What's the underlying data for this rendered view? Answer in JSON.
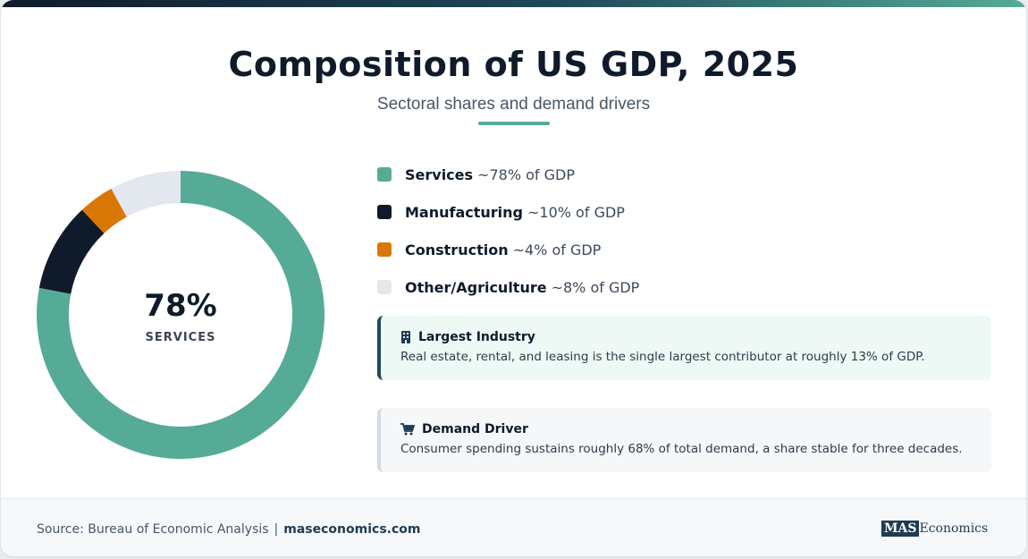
{
  "header": {
    "title": "Composition of US GDP, 2025",
    "subtitle": "Sectoral shares and demand drivers"
  },
  "donut_center": {
    "value": "78%",
    "label": "SERVICES"
  },
  "legend": [
    {
      "name": "Services",
      "desc": "~78% of GDP",
      "color": "#56ab97"
    },
    {
      "name": "Manufacturing",
      "desc": "~10% of GDP",
      "color": "#0f1b2a"
    },
    {
      "name": "Construction",
      "desc": "~4% of GDP",
      "color": "#d97706"
    },
    {
      "name": "Other/Agriculture",
      "desc": "~8% of GDP",
      "color": "#e3e8ee"
    }
  ],
  "notes": [
    {
      "icon": "building-icon",
      "title": "Largest Industry",
      "body": "Real estate, rental, and leasing is the single largest contributor at roughly 13% of GDP."
    },
    {
      "icon": "shopping-cart-icon",
      "title": "Demand Driver",
      "body": "Consumer spending sustains roughly 68% of total demand, a share stable for three decades."
    }
  ],
  "footer": {
    "source": "Source: Bureau of Economic Analysis",
    "separator": "|",
    "site": "maseconomics.com",
    "logo_box": "MAS",
    "logo_text": "Economics"
  },
  "chart_data": {
    "type": "pie",
    "categories": [
      "Services",
      "Manufacturing",
      "Construction",
      "Other/Agriculture"
    ],
    "values": [
      78,
      10,
      4,
      8
    ],
    "colors": [
      "#56ab97",
      "#0f1b2a",
      "#d97706",
      "#e3e8ee"
    ],
    "style": "donut",
    "center_label": "78% SERVICES",
    "legend": "right"
  }
}
